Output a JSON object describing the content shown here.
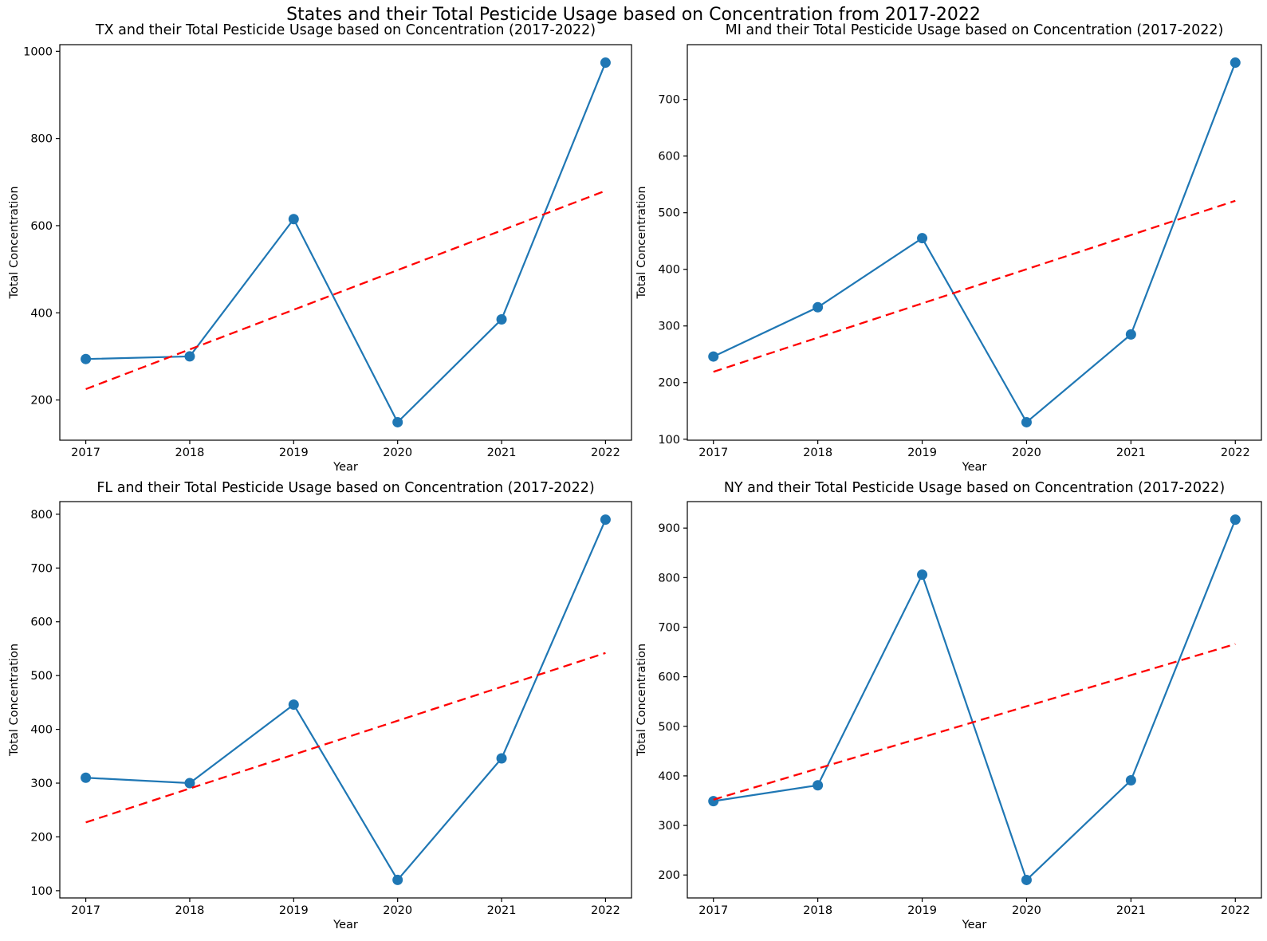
{
  "figure": {
    "title": "States and their Total Pesticide Usage based on Concentration from 2017-2022",
    "background_color": "#ffffff",
    "series_color": "#1f77b4",
    "trend_color": "#ff0000",
    "text_color": "#000000"
  },
  "chart_data": [
    {
      "type": "line",
      "state": "TX",
      "title": "TX and their Total Pesticide Usage based on Concentration (2017-2022)",
      "xlabel": "Year",
      "ylabel": "Total Concentration",
      "x": [
        2017,
        2018,
        2019,
        2020,
        2021,
        2022
      ],
      "values": [
        294,
        300,
        615,
        149,
        385,
        974
      ],
      "trend_line": {
        "start": 225,
        "end": 680,
        "style": "dashed",
        "color": "#ff0000"
      },
      "x_ticks": [
        2017,
        2018,
        2019,
        2020,
        2021,
        2022
      ],
      "y_ticks": [
        200,
        400,
        600,
        800,
        1000
      ],
      "xlim": [
        2016.75,
        2022.25
      ],
      "ylim": [
        107.75,
        1015.25
      ],
      "grid": false,
      "marker": "o"
    },
    {
      "type": "line",
      "state": "MI",
      "title": "MI and their Total Pesticide Usage based on Concentration (2017-2022)",
      "xlabel": "Year",
      "ylabel": "Total Concentration",
      "x": [
        2017,
        2018,
        2019,
        2020,
        2021,
        2022
      ],
      "values": [
        246,
        333,
        455,
        130,
        285,
        765
      ],
      "trend_line": {
        "start": 219,
        "end": 521,
        "style": "dashed",
        "color": "#ff0000"
      },
      "x_ticks": [
        2017,
        2018,
        2019,
        2020,
        2021,
        2022
      ],
      "y_ticks": [
        100,
        200,
        300,
        400,
        500,
        600,
        700
      ],
      "xlim": [
        2016.75,
        2022.25
      ],
      "ylim": [
        98.25,
        796.75
      ],
      "grid": false,
      "marker": "o"
    },
    {
      "type": "line",
      "state": "FL",
      "title": "FL and their Total Pesticide Usage based on Concentration (2017-2022)",
      "xlabel": "Year",
      "ylabel": "Total Concentration",
      "x": [
        2017,
        2018,
        2019,
        2020,
        2021,
        2022
      ],
      "values": [
        310,
        300,
        446,
        120,
        346,
        790
      ],
      "trend_line": {
        "start": 227,
        "end": 542,
        "style": "dashed",
        "color": "#ff0000"
      },
      "x_ticks": [
        2017,
        2018,
        2019,
        2020,
        2021,
        2022
      ],
      "y_ticks": [
        100,
        200,
        300,
        400,
        500,
        600,
        700,
        800
      ],
      "xlim": [
        2016.75,
        2022.25
      ],
      "ylim": [
        86.5,
        823.5
      ],
      "grid": false,
      "marker": "o"
    },
    {
      "type": "line",
      "state": "NY",
      "title": "NY and their Total Pesticide Usage based on Concentration (2017-2022)",
      "xlabel": "Year",
      "ylabel": "Total Concentration",
      "x": [
        2017,
        2018,
        2019,
        2020,
        2021,
        2022
      ],
      "values": [
        349,
        381,
        806,
        190,
        391,
        917
      ],
      "trend_line": {
        "start": 352,
        "end": 666,
        "style": "dashed",
        "color": "#ff0000"
      },
      "x_ticks": [
        2017,
        2018,
        2019,
        2020,
        2021,
        2022
      ],
      "y_ticks": [
        200,
        300,
        400,
        500,
        600,
        700,
        800,
        900
      ],
      "xlim": [
        2016.75,
        2022.25
      ],
      "ylim": [
        153.7,
        953.4
      ],
      "grid": false,
      "marker": "o"
    }
  ]
}
